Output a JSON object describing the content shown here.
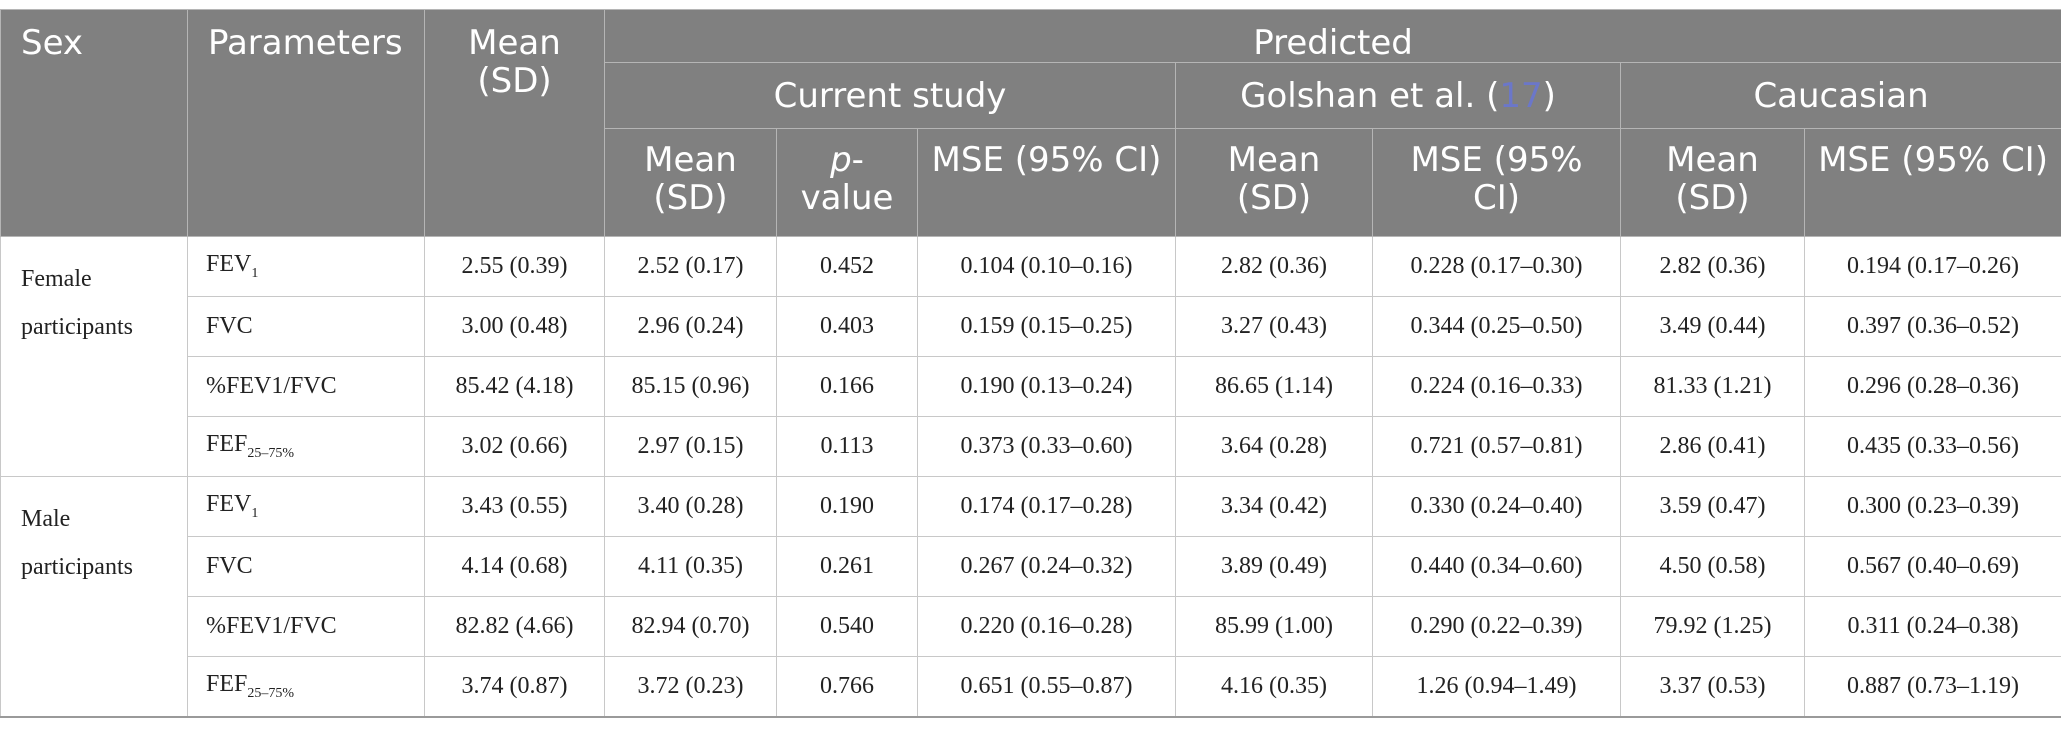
{
  "header": {
    "sex": "Sex",
    "parameters": "Parameters",
    "mean_sd_line1": "Mean",
    "mean_sd_line2": "(SD)",
    "predicted": "Predicted",
    "groups": {
      "current_study": "Current study",
      "golshan_prefix": "Golshan et al. (",
      "golshan_ref": "17",
      "golshan_suffix": ")",
      "caucasian": "Caucasian"
    },
    "sub": {
      "mean_line1": "Mean",
      "mean_line2": "(SD)",
      "p_line1": "p",
      "p_dash": "-",
      "p_line2": "value",
      "mse": "MSE (95% CI)",
      "mse_split_line1": "MSE (95%",
      "mse_split_line2": "CI)"
    }
  },
  "sections": [
    {
      "sex_line1": "Female",
      "sex_line2": "participants",
      "rows": [
        {
          "param": "FEV",
          "sub": "1",
          "mean": "2.55 (0.39)",
          "cs_mean": "2.52 (0.17)",
          "p": "0.452",
          "cs_mse": "0.104 (0.10–0.16)",
          "g_mean": "2.82 (0.36)",
          "g_mse": "0.228 (0.17–0.30)",
          "c_mean": "2.82 (0.36)",
          "c_mse": "0.194 (0.17–0.26)"
        },
        {
          "param": "FVC",
          "sub": "",
          "mean": "3.00 (0.48)",
          "cs_mean": "2.96 (0.24)",
          "p": "0.403",
          "cs_mse": "0.159 (0.15–0.25)",
          "g_mean": "3.27 (0.43)",
          "g_mse": "0.344 (0.25–0.50)",
          "c_mean": "3.49 (0.44)",
          "c_mse": "0.397 (0.36–0.52)"
        },
        {
          "param": "%FEV1/FVC",
          "sub": "",
          "mean": "85.42 (4.18)",
          "cs_mean": "85.15 (0.96)",
          "p": "0.166",
          "cs_mse": "0.190 (0.13–0.24)",
          "g_mean": "86.65 (1.14)",
          "g_mse": "0.224 (0.16–0.33)",
          "c_mean": "81.33 (1.21)",
          "c_mse": "0.296 (0.28–0.36)"
        },
        {
          "param": "FEF",
          "sub": "25–75%",
          "mean": "3.02 (0.66)",
          "cs_mean": "2.97 (0.15)",
          "p": "0.113",
          "cs_mse": "0.373 (0.33–0.60)",
          "g_mean": "3.64 (0.28)",
          "g_mse": "0.721 (0.57–0.81)",
          "c_mean": "2.86 (0.41)",
          "c_mse": "0.435 (0.33–0.56)"
        }
      ]
    },
    {
      "sex_line1": "Male",
      "sex_line2": "participants",
      "rows": [
        {
          "param": "FEV",
          "sub": "1",
          "mean": "3.43 (0.55)",
          "cs_mean": "3.40 (0.28)",
          "p": "0.190",
          "cs_mse": "0.174 (0.17–0.28)",
          "g_mean": "3.34 (0.42)",
          "g_mse": "0.330 (0.24–0.40)",
          "c_mean": "3.59 (0.47)",
          "c_mse": "0.300 (0.23–0.39)"
        },
        {
          "param": "FVC",
          "sub": "",
          "mean": "4.14 (0.68)",
          "cs_mean": "4.11 (0.35)",
          "p": "0.261",
          "cs_mse": "0.267 (0.24–0.32)",
          "g_mean": "3.89 (0.49)",
          "g_mse": "0.440 (0.34–0.60)",
          "c_mean": "4.50 (0.58)",
          "c_mse": "0.567 (0.40–0.69)"
        },
        {
          "param": "%FEV1/FVC",
          "sub": "",
          "mean": "82.82 (4.66)",
          "cs_mean": "82.94 (0.70)",
          "p": "0.540",
          "cs_mse": "0.220 (0.16–0.28)",
          "g_mean": "85.99 (1.00)",
          "g_mse": "0.290 (0.22–0.39)",
          "c_mean": "79.92 (1.25)",
          "c_mse": "0.311 (0.24–0.38)"
        },
        {
          "param": "FEF",
          "sub": "25–75%",
          "mean": "3.74 (0.87)",
          "cs_mean": "3.72 (0.23)",
          "p": "0.766",
          "cs_mse": "0.651 (0.55–0.87)",
          "g_mean": "4.16 (0.35)",
          "g_mse": "1.26 (0.94–1.49)",
          "c_mean": "3.37 (0.53)",
          "c_mse": "0.887 (0.73–1.19)"
        }
      ]
    }
  ]
}
